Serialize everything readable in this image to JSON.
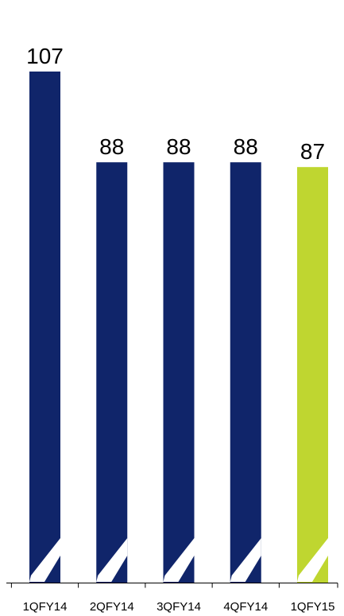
{
  "chart_data": {
    "type": "bar",
    "categories": [
      "1QFY14",
      "2QFY14",
      "3QFY14",
      "4QFY14",
      "1QFY15"
    ],
    "values": [
      107,
      88,
      88,
      88,
      87
    ],
    "data_labels": [
      "107",
      "88",
      "88",
      "88",
      "87"
    ],
    "title": "",
    "xlabel": "",
    "ylabel": "",
    "ylim": [
      0,
      107
    ],
    "grid": false,
    "legend": "none",
    "colors": {
      "bar": "#10256a",
      "highlight": "#bfd630",
      "axis": "#000000",
      "break_mark": "#ffffff"
    },
    "highlight_index": 4,
    "axis_break": true
  }
}
